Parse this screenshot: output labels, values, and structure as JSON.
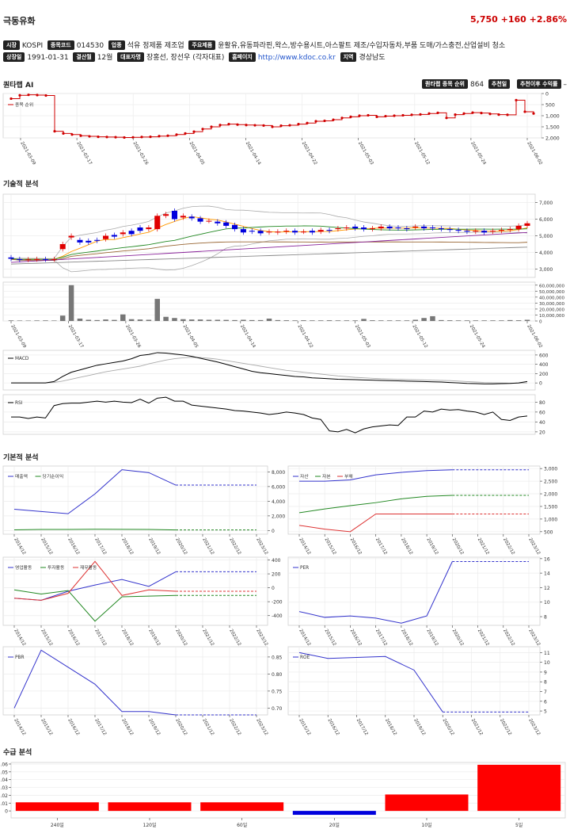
{
  "header": {
    "name": "극동유화",
    "price": "5,750 +160 +2.86%"
  },
  "info": {
    "market_label": "시장",
    "market": "KOSPI",
    "code_label": "종목코드",
    "code": "014530",
    "industry_label": "업종",
    "industry": "석유 정제품 제조업",
    "products_label": "주요제품",
    "products": "윤활유,유동파라핀,왁스,방수용시트,아스팔트 제조/수입자동차,부품 도매/가스충전,산업설비 청소",
    "listing_label": "상장일",
    "listing": "1991-01-31",
    "fiscal_label": "결산월",
    "fiscal": "12월",
    "ceo_label": "대표자명",
    "ceo": "장홍선, 장선우 (각자대표)",
    "homepage_label": "홈페이지",
    "homepage": "http://www.kdoc.co.kr",
    "region_label": "지역",
    "region": "경상남도"
  },
  "sections": {
    "ai": "퀀타랩 AI",
    "tech": "기술적 분석",
    "fund": "기본적 분석",
    "supply": "수급 분석"
  },
  "rank": {
    "label": "퀀타랩 종목 순위",
    "value": "864",
    "rec_date_label": "추천일",
    "rec_return_label": "추천이후 수익률",
    "rec_return": "–"
  },
  "chart_data": [
    {
      "type": "line",
      "name": "rank-chart",
      "legend": [
        "종목 순위"
      ],
      "x_ticks": [
        "2021-03-09",
        "2021-03-17",
        "2021-03-26",
        "2021-04-05",
        "2021-04-14",
        "2021-04-22",
        "2021-05-03",
        "2021-05-12",
        "2021-05-24",
        "2021-06-02"
      ],
      "y_ticks": [
        "0",
        "500",
        "1,000",
        "1,500",
        "2,000"
      ],
      "ylim": [
        0,
        2000
      ],
      "y_inverted": true,
      "values": [
        230,
        80,
        60,
        70,
        90,
        1700,
        1800,
        1850,
        1900,
        1930,
        1950,
        1960,
        1970,
        1980,
        1975,
        1960,
        1950,
        1920,
        1900,
        1850,
        1800,
        1720,
        1600,
        1500,
        1420,
        1380,
        1400,
        1420,
        1430,
        1440,
        1500,
        1450,
        1430,
        1380,
        1330,
        1250,
        1230,
        1180,
        1100,
        1050,
        1000,
        980,
        1050,
        1020,
        1000,
        980,
        960,
        940,
        900,
        870,
        1100,
        950,
        900,
        860,
        880,
        920,
        950,
        960,
        300,
        820,
        900
      ]
    },
    {
      "type": "candlestick",
      "name": "price-chart",
      "y_ticks": [
        "3,000",
        "4,000",
        "5,000",
        "6,000",
        "7,000"
      ],
      "ylim": [
        2500,
        7500
      ],
      "candles": [
        [
          3700,
          3620
        ],
        [
          3600,
          3550
        ],
        [
          3560,
          3580
        ],
        [
          3590,
          3600
        ],
        [
          3600,
          3570
        ],
        [
          3580,
          3600
        ],
        [
          4200,
          4500
        ],
        [
          4900,
          5000
        ],
        [
          4750,
          4600
        ],
        [
          4700,
          4600
        ],
        [
          4750,
          4700
        ],
        [
          4800,
          5000
        ],
        [
          5050,
          4950
        ],
        [
          5100,
          5200
        ],
        [
          5300,
          5100
        ],
        [
          5500,
          5300
        ],
        [
          5400,
          5500
        ],
        [
          5400,
          6200
        ],
        [
          6200,
          6300
        ],
        [
          6500,
          6000
        ],
        [
          6100,
          6200
        ],
        [
          6150,
          6050
        ],
        [
          6050,
          5850
        ],
        [
          5900,
          5900
        ],
        [
          5850,
          5750
        ],
        [
          5800,
          5600
        ],
        [
          5650,
          5400
        ],
        [
          5400,
          5200
        ],
        [
          5300,
          5250
        ],
        [
          5300,
          5150
        ],
        [
          5200,
          5250
        ],
        [
          5200,
          5250
        ],
        [
          5250,
          5300
        ],
        [
          5300,
          5200
        ],
        [
          5250,
          5250
        ],
        [
          5300,
          5200
        ],
        [
          5250,
          5350
        ],
        [
          5350,
          5300
        ],
        [
          5400,
          5450
        ],
        [
          5450,
          5500
        ],
        [
          5550,
          5450
        ],
        [
          5500,
          5400
        ],
        [
          5400,
          5450
        ],
        [
          5450,
          5550
        ],
        [
          5550,
          5450
        ],
        [
          5500,
          5450
        ],
        [
          5450,
          5400
        ],
        [
          5500,
          5550
        ],
        [
          5550,
          5450
        ],
        [
          5500,
          5450
        ],
        [
          5450,
          5400
        ],
        [
          5400,
          5350
        ],
        [
          5350,
          5300
        ],
        [
          5300,
          5250
        ],
        [
          5250,
          5300
        ],
        [
          5300,
          5200
        ],
        [
          5250,
          5300
        ],
        [
          5300,
          5350
        ],
        [
          5350,
          5400
        ],
        [
          5400,
          5600
        ],
        [
          5600,
          5750
        ]
      ]
    },
    {
      "type": "bar",
      "name": "volume-chart",
      "y_ticks": [
        "0",
        "10,000,000",
        "20,000,000",
        "30,000,000",
        "40,000,000",
        "50,000,000",
        "60,000,000"
      ],
      "ylim": [
        0,
        65000000
      ],
      "values": [
        1000000,
        800000,
        700000,
        900000,
        1000000,
        800000,
        9000000,
        60000000,
        4000000,
        2000000,
        1500000,
        2500000,
        1800000,
        11000000,
        3000000,
        2500000,
        2000000,
        37000000,
        7000000,
        5000000,
        3000000,
        2500000,
        2500000,
        2000000,
        2000000,
        1800000,
        1500000,
        2000000,
        1500000,
        1500000,
        4000000,
        1500000,
        1200000,
        1000000,
        1200000,
        1000000,
        1000000,
        1200000,
        1000000,
        1000000,
        1000000,
        3500000,
        1200000,
        1000000,
        1000000,
        1000000,
        1000000,
        2000000,
        5000000,
        8000000,
        1500000,
        1200000,
        1000000,
        1000000,
        1000000,
        1000000,
        1000000,
        1000000,
        1500000,
        1200000,
        2000000
      ]
    },
    {
      "type": "line",
      "name": "macd-chart",
      "legend": [
        "MACD"
      ],
      "y_ticks": [
        "0",
        "200",
        "400",
        "600"
      ],
      "ylim": [
        -150,
        700
      ],
      "values": [
        0,
        0,
        0,
        0,
        0,
        30,
        140,
        230,
        280,
        330,
        380,
        410,
        440,
        470,
        520,
        590,
        610,
        650,
        640,
        620,
        600,
        570,
        530,
        490,
        450,
        400,
        350,
        300,
        250,
        220,
        200,
        180,
        160,
        140,
        130,
        110,
        100,
        90,
        80,
        75,
        70,
        65,
        60,
        55,
        50,
        45,
        40,
        35,
        30,
        25,
        20,
        10,
        0,
        -10,
        -15,
        -20,
        -20,
        -15,
        -10,
        0,
        30
      ],
      "signal": [
        0,
        0,
        0,
        0,
        0,
        10,
        40,
        80,
        120,
        160,
        200,
        240,
        270,
        300,
        330,
        360,
        410,
        450,
        490,
        520,
        540,
        550,
        545,
        530,
        510,
        480,
        450,
        420,
        390,
        360,
        330,
        300,
        270,
        250,
        230,
        210,
        190,
        170,
        150,
        135,
        120,
        110,
        100,
        90,
        85,
        80,
        75,
        70,
        65,
        60,
        55,
        50,
        40,
        30,
        20,
        10,
        5,
        0,
        -5,
        -5,
        0
      ]
    },
    {
      "type": "line",
      "name": "rsi-chart",
      "legend": [
        "RSI"
      ],
      "y_ticks": [
        "20",
        "40",
        "60",
        "80"
      ],
      "ylim": [
        15,
        95
      ],
      "values": [
        50,
        50,
        47,
        50,
        48,
        73,
        77,
        78,
        78,
        80,
        82,
        80,
        82,
        80,
        79,
        86,
        78,
        88,
        90,
        82,
        82,
        74,
        72,
        70,
        68,
        66,
        63,
        62,
        60,
        58,
        55,
        57,
        60,
        58,
        55,
        48,
        45,
        22,
        20,
        25,
        18,
        26,
        30,
        32,
        34,
        33,
        50,
        50,
        62,
        60,
        66,
        64,
        65,
        62,
        60,
        55,
        60,
        45,
        43,
        50,
        52
      ]
    },
    {
      "type": "line",
      "name": "sales-chart",
      "legend": [
        "매출액",
        "당기순이익"
      ],
      "categories": [
        "2014/12",
        "2015/12",
        "2016/12",
        "2017/12",
        "2018/12",
        "2019/12",
        "2020/12",
        "2021/12",
        "2022/12",
        "2023/12"
      ],
      "y_ticks": [
        "0",
        "2,000",
        "4,000",
        "6,000",
        "8,000"
      ],
      "ylim": [
        -500,
        8800
      ],
      "series": [
        {
          "name": "매출액",
          "values": [
            2900,
            2600,
            2300,
            5000,
            8300,
            7900,
            6200,
            6200,
            6200,
            6200
          ]
        },
        {
          "name": "당기순이익",
          "values": [
            100,
            150,
            150,
            180,
            160,
            150,
            80,
            80,
            80,
            80
          ]
        }
      ],
      "forecast_from": 6
    },
    {
      "type": "line",
      "name": "assets-chart",
      "legend": [
        "자산",
        "자본",
        "부채"
      ],
      "categories": [
        "2014/12",
        "2015/12",
        "2016/12",
        "2017/12",
        "2018/12",
        "2019/12",
        "2020/12",
        "2021/12",
        "2022/12",
        "2023/12"
      ],
      "y_ticks": [
        "500",
        "1,000",
        "1,500",
        "2,000",
        "2,500",
        "3,000"
      ],
      "ylim": [
        400,
        3100
      ],
      "series": [
        {
          "name": "자산",
          "values": [
            2500,
            2500,
            2550,
            2750,
            2850,
            2920,
            2950,
            2950,
            2950,
            2950
          ]
        },
        {
          "name": "자본",
          "values": [
            1250,
            1400,
            1530,
            1650,
            1800,
            1900,
            1940,
            1940,
            1940,
            1940
          ]
        },
        {
          "name": "부채",
          "values": [
            750,
            600,
            500,
            1200,
            1200,
            1200,
            1200,
            1200,
            1200,
            1200
          ]
        }
      ],
      "forecast_from": 6
    },
    {
      "type": "line",
      "name": "cashflow-chart",
      "legend": [
        "영업활동",
        "투자활동",
        "재무활동"
      ],
      "categories": [
        "2014/12",
        "2015/12",
        "2016/12",
        "2017/12",
        "2018/12",
        "2019/12",
        "2020/12",
        "2021/12",
        "2022/12",
        "2023/12"
      ],
      "y_ticks": [
        "-400",
        "-200",
        "0",
        "200",
        "400"
      ],
      "ylim": [
        -540,
        440
      ],
      "series": [
        {
          "name": "영업활동",
          "values": [
            -150,
            -180,
            -50,
            40,
            120,
            20,
            230,
            230,
            230,
            230
          ]
        },
        {
          "name": "투자활동",
          "values": [
            -30,
            -90,
            -40,
            -480,
            -130,
            -120,
            -110,
            -110,
            -110,
            -110
          ]
        },
        {
          "name": "재무활동",
          "values": [
            -150,
            -180,
            -80,
            380,
            -110,
            -30,
            -50,
            -50,
            -50,
            -50
          ]
        }
      ],
      "forecast_from": 6
    },
    {
      "type": "line",
      "name": "per-chart",
      "legend": [
        "PER"
      ],
      "categories": [
        "2014/12",
        "2015/12",
        "2016/12",
        "2017/12",
        "2018/12",
        "2019/12",
        "2020/12",
        "2021/12",
        "2022/12",
        "2023/12"
      ],
      "y_ticks": [
        "8",
        "10",
        "12",
        "14",
        "16"
      ],
      "ylim": [
        6.8,
        16.2
      ],
      "series": [
        {
          "name": "PER",
          "values": [
            8.7,
            7.9,
            8.1,
            7.8,
            7.1,
            8.1,
            15.6,
            15.6,
            15.6,
            15.6
          ]
        }
      ],
      "forecast_from": 6
    },
    {
      "type": "line",
      "name": "pbr-chart",
      "legend": [
        "PBR"
      ],
      "categories": [
        "2014/12",
        "2015/12",
        "2016/12",
        "2017/12",
        "2018/12",
        "2019/12",
        "2020/12",
        "2021/12",
        "2022/12",
        "2023/12"
      ],
      "y_ticks": [
        "0.70",
        "0.75",
        "0.80",
        "0.85"
      ],
      "ylim": [
        0.68,
        0.88
      ],
      "series": [
        {
          "name": "PBR",
          "values": [
            0.7,
            0.87,
            0.82,
            0.77,
            0.69,
            0.69,
            0.68,
            0.68,
            0.68,
            0.68
          ]
        }
      ],
      "forecast_from": 6
    },
    {
      "type": "line",
      "name": "roe-chart",
      "legend": [
        "ROE"
      ],
      "categories": [
        "2015/12",
        "2016/12",
        "2017/12",
        "2018/12",
        "2019/12",
        "2020/12",
        "2021/12",
        "2022/12",
        "2023/12"
      ],
      "y_ticks": [
        "5",
        "6",
        "7",
        "8",
        "9",
        "10",
        "11"
      ],
      "ylim": [
        4.6,
        11.6
      ],
      "series": [
        {
          "name": "ROE",
          "values": [
            11.0,
            10.4,
            10.5,
            10.6,
            9.2,
            4.9,
            4.9,
            4.9,
            4.9
          ]
        }
      ],
      "forecast_from": 5
    },
    {
      "type": "bar",
      "name": "supply-chart",
      "categories": [
        "240일",
        "120일",
        "60일",
        "20일",
        "10일",
        "5일"
      ],
      "y_ticks": [
        "0",
        "0.01",
        "0.02",
        "0.03",
        "0.04",
        "0.05",
        "0.06"
      ],
      "ylim": [
        -0.009,
        0.062
      ],
      "values": [
        0.011,
        0.011,
        0.011,
        -0.005,
        0.021,
        0.059
      ],
      "colors": {
        "positive": "#ff0000",
        "negative": "#0000dd"
      }
    }
  ]
}
